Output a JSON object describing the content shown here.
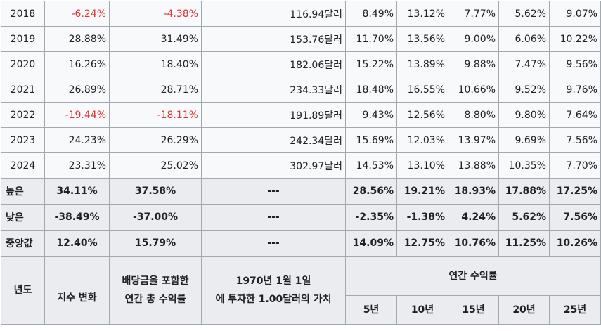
{
  "rows": [
    {
      "year": "2018",
      "change": "-6.24%",
      "total": "-4.38%",
      "value": "116.94달러",
      "r5": "8.49%",
      "r10": "13.12%",
      "r15": "7.77%",
      "r20": "5.62%",
      "r25": "9.07%"
    },
    {
      "year": "2019",
      "change": "28.88%",
      "total": "31.49%",
      "value": "153.76달러",
      "r5": "11.70%",
      "r10": "13.56%",
      "r15": "9.00%",
      "r20": "6.06%",
      "r25": "10.22%"
    },
    {
      "year": "2020",
      "change": "16.26%",
      "total": "18.40%",
      "value": "182.06달러",
      "r5": "15.22%",
      "r10": "13.89%",
      "r15": "9.88%",
      "r20": "7.47%",
      "r25": "9.56%"
    },
    {
      "year": "2021",
      "change": "26.89%",
      "total": "28.71%",
      "value": "234.33달러",
      "r5": "18.48%",
      "r10": "16.55%",
      "r15": "10.66%",
      "r20": "9.52%",
      "r25": "9.76%"
    },
    {
      "year": "2022",
      "change": "-19.44%",
      "total": "-18.11%",
      "value": "191.89달러",
      "r5": "9.43%",
      "r10": "12.56%",
      "r15": "8.80%",
      "r20": "9.80%",
      "r25": "7.64%"
    },
    {
      "year": "2023",
      "change": "24.23%",
      "total": "26.29%",
      "value": "242.34달러",
      "r5": "15.69%",
      "r10": "12.03%",
      "r15": "13.97%",
      "r20": "9.69%",
      "r25": "7.56%"
    },
    {
      "year": "2024",
      "change": "23.31%",
      "total": "25.02%",
      "value": "302.97달러",
      "r5": "14.53%",
      "r10": "13.10%",
      "r15": "13.88%",
      "r20": "10.35%",
      "r25": "7.70%"
    }
  ],
  "stats": [
    {
      "label": "높은",
      "change": "34.11%",
      "total": "37.58%",
      "value": "---",
      "r5": "28.56%",
      "r10": "19.21%",
      "r15": "18.93%",
      "r20": "17.88%",
      "r25": "17.25%"
    },
    {
      "label": "낮은",
      "change": "-38.49%",
      "total": "-37.00%",
      "value": "---",
      "r5": "-2.35%",
      "r10": "-1.38%",
      "r15": "4.24%",
      "r20": "5.62%",
      "r25": "7.56%"
    },
    {
      "label": "중앙값",
      "change": "12.40%",
      "total": "15.79%",
      "value": "---",
      "r5": "14.09%",
      "r10": "12.75%",
      "r15": "10.76%",
      "r20": "11.25%",
      "r25": "10.26%"
    }
  ],
  "header": {
    "year": "년도",
    "change": "지수 변화",
    "total_line1": "배당금을 포함한",
    "total_line2": "연간 총 수익률",
    "value_line1": "1970년 1월 1일",
    "value_line2": "에 투자한 1.00달러의 가치",
    "annual": "연간 수익률",
    "y5": "5년",
    "y10": "10년",
    "y15": "15년",
    "y20": "20년",
    "y25": "25년"
  },
  "colors": {
    "negative": "#dd3333",
    "header_bg": "#eaecf0",
    "cell_bg": "#f8f9fa",
    "border": "#a2a9b1"
  }
}
